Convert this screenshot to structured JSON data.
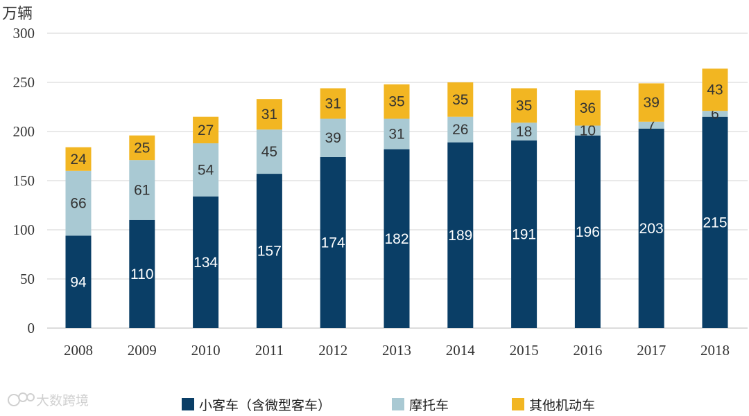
{
  "chart_data": {
    "type": "bar",
    "stacked": true,
    "ylabel": "万辆",
    "ylim": [
      0,
      300
    ],
    "yticks": [
      0,
      50,
      100,
      150,
      200,
      250,
      300
    ],
    "grid": true,
    "legend_position": "bottom",
    "categories": [
      "2008",
      "2009",
      "2010",
      "2011",
      "2012",
      "2013",
      "2014",
      "2015",
      "2016",
      "2017",
      "2018"
    ],
    "series": [
      {
        "name": "小客车（含微型客车）",
        "color": "#0a3e66",
        "label_color": "#ffffff",
        "values": [
          94,
          110,
          134,
          157,
          174,
          182,
          189,
          191,
          196,
          203,
          215
        ]
      },
      {
        "name": "摩托车",
        "color": "#a9c9d3",
        "label_color": "#333333",
        "values": [
          66,
          61,
          54,
          45,
          39,
          31,
          26,
          18,
          10,
          7,
          6
        ]
      },
      {
        "name": "其他机动车",
        "color": "#f2b622",
        "label_color": "#333333",
        "values": [
          24,
          25,
          27,
          31,
          31,
          35,
          35,
          35,
          36,
          39,
          43
        ]
      }
    ]
  },
  "watermark": {
    "text": "大数跨境"
  }
}
